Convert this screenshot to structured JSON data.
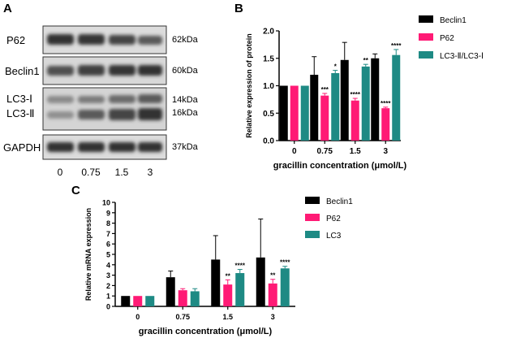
{
  "panels": {
    "a": "A",
    "b": "B",
    "c": "C"
  },
  "blot": {
    "rows": [
      {
        "name": "P62",
        "kda": [
          "62kDa"
        ]
      },
      {
        "name": "Beclin1",
        "kda": [
          "60kDa"
        ]
      },
      {
        "name": [
          "LC3-Ⅰ",
          "LC3-Ⅱ"
        ],
        "kda": [
          "14kDa",
          "16kDa"
        ]
      },
      {
        "name": "GAPDH",
        "kda": [
          "37kDa"
        ]
      }
    ],
    "lanes": [
      "0",
      "0.75",
      "1.5",
      "3"
    ]
  },
  "chart_data": [
    {
      "type": "bar",
      "categories": [
        "0",
        "0.75",
        "1.5",
        "3"
      ],
      "xlabel": "gracillin concentration (μmol/L)",
      "ylabel": "Relative expression of protein",
      "ylim": [
        0.0,
        2.0
      ],
      "yticks": [
        "0.0",
        "0.5",
        "1.0",
        "1.5",
        "2.0"
      ],
      "legend_position": "top-right",
      "series": [
        {
          "name": "Beclin1",
          "color": "#000000",
          "values": [
            1.0,
            1.2,
            1.47,
            1.5
          ],
          "errors": [
            0,
            0.33,
            0.32,
            0.08
          ],
          "sig": [
            "",
            "",
            "",
            ""
          ]
        },
        {
          "name": "P62",
          "color": "#ff1a75",
          "values": [
            1.0,
            0.82,
            0.73,
            0.59
          ],
          "errors": [
            0,
            0.04,
            0.04,
            0.02
          ],
          "sig": [
            "",
            "***",
            "****",
            "****"
          ]
        },
        {
          "name": "LC3-Ⅱ/LC3-Ⅰ",
          "color": "#1e8a84",
          "values": [
            1.0,
            1.23,
            1.35,
            1.56
          ],
          "errors": [
            0,
            0.05,
            0.04,
            0.1
          ],
          "sig": [
            "",
            "*",
            "**",
            "****"
          ]
        }
      ]
    },
    {
      "type": "bar",
      "categories": [
        "0",
        "0.75",
        "1.5",
        "3"
      ],
      "xlabel": "gracillin concentration (μmol/L)",
      "ylabel": "Relative mRNA expression",
      "ylim": [
        0,
        10
      ],
      "yticks": [
        "0",
        "1",
        "2",
        "3",
        "4",
        "5",
        "6",
        "7",
        "8",
        "9",
        "10"
      ],
      "legend_position": "top-right",
      "series": [
        {
          "name": "Beclin1",
          "color": "#000000",
          "values": [
            1.0,
            2.8,
            4.5,
            4.7
          ],
          "errors": [
            0,
            0.6,
            2.3,
            3.7
          ],
          "sig": [
            "",
            "",
            "",
            ""
          ]
        },
        {
          "name": "P62",
          "color": "#ff1a75",
          "values": [
            1.0,
            1.55,
            2.1,
            2.2
          ],
          "errors": [
            0,
            0.15,
            0.45,
            0.4
          ],
          "sig": [
            "",
            "",
            "**",
            "**"
          ]
        },
        {
          "name": "LC3",
          "color": "#1e8a84",
          "values": [
            1.0,
            1.45,
            3.2,
            3.65
          ],
          "errors": [
            0,
            0.25,
            0.35,
            0.2
          ],
          "sig": [
            "",
            "",
            "****",
            "****"
          ]
        }
      ]
    }
  ]
}
